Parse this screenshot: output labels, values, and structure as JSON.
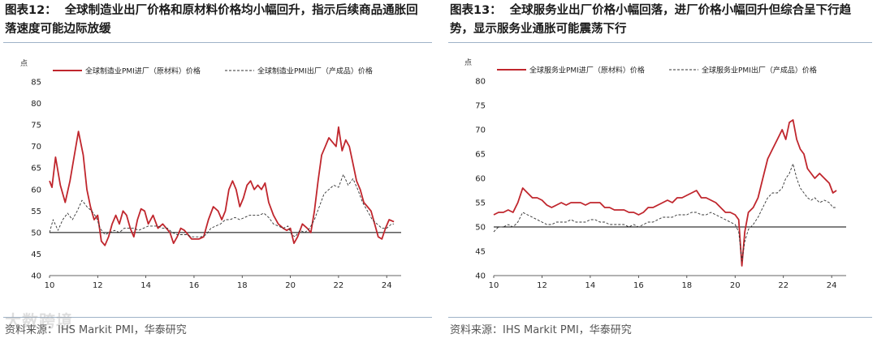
{
  "figures": [
    {
      "fig_label": "图表12：",
      "title": "全球制造业出厂价格和原材料价格均小幅回升，指示后续商品通胀回落速度可能边际放缓",
      "source": "资料来源：IHS Markit PMI，华泰研究"
    },
    {
      "fig_label": "图表13：",
      "title": "全球服务业出厂价格小幅回落，进厂价格小幅回升但综合呈下行趋势，显示服务业通胀可能震荡下行",
      "source": "资料来源：IHS Markit PMI，华泰研究"
    }
  ],
  "watermark": "大数跨境",
  "colors": {
    "input_series": "#c0262d",
    "output_series": "#333333",
    "rule": "#9fb3c8"
  },
  "chart_data": [
    {
      "type": "line",
      "ylabel": "点",
      "ylim": [
        40,
        85
      ],
      "yticks": [
        40,
        45,
        50,
        55,
        60,
        65,
        70,
        75,
        80,
        85
      ],
      "xlim": [
        2010,
        2024.6
      ],
      "xticks": [
        2010,
        2012,
        2014,
        2016,
        2018,
        2020,
        2022,
        2024
      ],
      "xtick_labels": [
        "10",
        "12",
        "14",
        "16",
        "18",
        "20",
        "22",
        "24"
      ],
      "reference_line": 50,
      "legend_position": "top",
      "series": [
        {
          "name": "全球制造业PMI进厂（原材料）价格",
          "style": "solid",
          "x": [
            2010.0,
            2010.1,
            2010.25,
            2010.45,
            2010.65,
            2010.85,
            2011.0,
            2011.2,
            2011.4,
            2011.55,
            2011.7,
            2011.85,
            2012.0,
            2012.15,
            2012.3,
            2012.45,
            2012.6,
            2012.75,
            2012.9,
            2013.05,
            2013.2,
            2013.35,
            2013.5,
            2013.65,
            2013.8,
            2013.95,
            2014.1,
            2014.3,
            2014.5,
            2014.7,
            2014.85,
            2015.0,
            2015.15,
            2015.3,
            2015.45,
            2015.6,
            2015.75,
            2015.9,
            2016.05,
            2016.2,
            2016.4,
            2016.6,
            2016.8,
            2017.0,
            2017.15,
            2017.3,
            2017.45,
            2017.6,
            2017.75,
            2017.9,
            2018.05,
            2018.2,
            2018.35,
            2018.5,
            2018.65,
            2018.8,
            2018.95,
            2019.1,
            2019.3,
            2019.5,
            2019.7,
            2019.85,
            2020.0,
            2020.15,
            2020.3,
            2020.5,
            2020.7,
            2020.85,
            2021.0,
            2021.15,
            2021.3,
            2021.45,
            2021.6,
            2021.75,
            2021.9,
            2022.0,
            2022.15,
            2022.3,
            2022.45,
            2022.6,
            2022.75,
            2022.9,
            2023.05,
            2023.2,
            2023.35,
            2023.5,
            2023.65,
            2023.8,
            2023.95,
            2024.1,
            2024.3
          ],
          "y": [
            62,
            60.5,
            67.5,
            61,
            57,
            62,
            67,
            73.5,
            68,
            60,
            56,
            53,
            54,
            48,
            47,
            49,
            52,
            54,
            52,
            55,
            54,
            51,
            49,
            53,
            55.5,
            55,
            52,
            54,
            51,
            52,
            51,
            50,
            47.5,
            49,
            51,
            50.5,
            49.5,
            48.5,
            48.5,
            48.5,
            49,
            53,
            56,
            55,
            53,
            55,
            60,
            62,
            60,
            56,
            58,
            61,
            62,
            60,
            61,
            60,
            61.5,
            57,
            54,
            52,
            51,
            50.5,
            51,
            47.5,
            49,
            52,
            51,
            50,
            55,
            62,
            68,
            70,
            72,
            71,
            70,
            74.5,
            69,
            71.5,
            70,
            66,
            62,
            60,
            57,
            56,
            55,
            52,
            49,
            48.5,
            51,
            53,
            52.5
          ]
        },
        {
          "name": "全球制造业PMI出厂（产成品）价格",
          "style": "dashed",
          "x": [
            2010.0,
            2010.15,
            2010.35,
            2010.55,
            2010.75,
            2010.95,
            2011.15,
            2011.35,
            2011.55,
            2011.75,
            2011.95,
            2012.1,
            2012.3,
            2012.5,
            2012.7,
            2012.9,
            2013.1,
            2013.3,
            2013.5,
            2013.7,
            2013.9,
            2014.1,
            2014.3,
            2014.5,
            2014.7,
            2014.9,
            2015.1,
            2015.3,
            2015.5,
            2015.7,
            2015.9,
            2016.1,
            2016.3,
            2016.5,
            2016.7,
            2016.9,
            2017.1,
            2017.3,
            2017.5,
            2017.7,
            2017.9,
            2018.1,
            2018.3,
            2018.5,
            2018.7,
            2018.9,
            2019.1,
            2019.3,
            2019.5,
            2019.7,
            2019.9,
            2020.05,
            2020.2,
            2020.4,
            2020.6,
            2020.8,
            2021.0,
            2021.2,
            2021.4,
            2021.6,
            2021.8,
            2022.0,
            2022.2,
            2022.4,
            2022.6,
            2022.8,
            2023.0,
            2023.2,
            2023.4,
            2023.6,
            2023.8,
            2024.0,
            2024.2,
            2024.3
          ],
          "y": [
            50,
            53,
            50.5,
            53,
            54.5,
            53,
            55,
            57.5,
            56,
            55,
            53.5,
            51,
            49.5,
            50,
            50.5,
            50,
            51,
            51,
            51,
            50.5,
            51,
            51.5,
            51.5,
            51.5,
            51,
            51,
            50,
            49.5,
            49.5,
            49.5,
            49,
            49,
            49,
            49.5,
            51,
            51.5,
            52,
            53,
            53,
            53.5,
            53,
            53.5,
            54,
            54,
            54,
            54.5,
            53.5,
            52,
            51.5,
            51,
            51.5,
            49.5,
            49,
            50.5,
            50,
            51,
            53,
            56,
            59,
            60,
            61,
            60.5,
            63.5,
            61,
            62.5,
            60,
            57,
            55,
            53,
            52,
            51,
            51,
            52,
            52
          ]
        }
      ]
    },
    {
      "type": "line",
      "ylabel": "点",
      "ylim": [
        40,
        80
      ],
      "yticks": [
        40,
        45,
        50,
        55,
        60,
        65,
        70,
        75,
        80
      ],
      "xlim": [
        2010,
        2024.6
      ],
      "xticks": [
        2010,
        2012,
        2014,
        2016,
        2018,
        2020,
        2022,
        2024
      ],
      "xtick_labels": [
        "10",
        "12",
        "14",
        "16",
        "18",
        "20",
        "22",
        "24"
      ],
      "reference_line": 50,
      "legend_position": "top",
      "series": [
        {
          "name": "全球服务业PMI进厂（原材料）价格",
          "style": "solid",
          "x": [
            2010.0,
            2010.2,
            2010.4,
            2010.6,
            2010.8,
            2011.0,
            2011.2,
            2011.4,
            2011.6,
            2011.8,
            2012.0,
            2012.2,
            2012.4,
            2012.6,
            2012.8,
            2013.0,
            2013.2,
            2013.4,
            2013.6,
            2013.8,
            2014.0,
            2014.2,
            2014.4,
            2014.6,
            2014.8,
            2015.0,
            2015.2,
            2015.4,
            2015.6,
            2015.8,
            2016.0,
            2016.2,
            2016.4,
            2016.6,
            2016.8,
            2017.0,
            2017.2,
            2017.4,
            2017.6,
            2017.8,
            2018.0,
            2018.2,
            2018.4,
            2018.6,
            2018.8,
            2019.0,
            2019.2,
            2019.4,
            2019.6,
            2019.8,
            2020.0,
            2020.15,
            2020.28,
            2020.4,
            2020.55,
            2020.75,
            2020.95,
            2021.15,
            2021.35,
            2021.55,
            2021.75,
            2021.95,
            2022.1,
            2022.25,
            2022.4,
            2022.55,
            2022.7,
            2022.85,
            2023.0,
            2023.15,
            2023.3,
            2023.5,
            2023.7,
            2023.9,
            2024.05,
            2024.2
          ],
          "y": [
            52.5,
            53,
            53,
            53.5,
            53,
            55,
            58,
            57,
            56,
            56,
            55.5,
            54.5,
            54,
            54.5,
            55,
            54.5,
            55,
            55,
            55,
            54.5,
            55,
            55,
            55,
            54,
            54,
            53.5,
            53.5,
            53.5,
            53,
            53,
            52.5,
            53,
            54,
            54,
            54.5,
            55,
            55.5,
            55,
            56,
            56,
            56.5,
            57,
            57.5,
            56,
            56,
            55.5,
            55,
            54,
            53,
            53,
            52.5,
            51.5,
            42,
            49,
            53,
            54,
            56,
            60,
            64,
            66,
            68,
            70,
            68,
            71.5,
            72,
            68,
            66,
            65,
            62,
            61,
            60,
            61,
            60,
            59,
            57,
            57.5
          ]
        },
        {
          "name": "全球服务业PMI出厂（产成品）价格",
          "style": "dashed",
          "x": [
            2010.0,
            2010.2,
            2010.4,
            2010.6,
            2010.8,
            2011.0,
            2011.2,
            2011.4,
            2011.6,
            2011.8,
            2012.0,
            2012.2,
            2012.4,
            2012.6,
            2012.8,
            2013.0,
            2013.2,
            2013.4,
            2013.6,
            2013.8,
            2014.0,
            2014.2,
            2014.4,
            2014.6,
            2014.8,
            2015.0,
            2015.2,
            2015.4,
            2015.6,
            2015.8,
            2016.0,
            2016.2,
            2016.4,
            2016.6,
            2016.8,
            2017.0,
            2017.2,
            2017.4,
            2017.6,
            2017.8,
            2018.0,
            2018.2,
            2018.4,
            2018.6,
            2018.8,
            2019.0,
            2019.2,
            2019.4,
            2019.6,
            2019.8,
            2020.0,
            2020.15,
            2020.28,
            2020.4,
            2020.55,
            2020.75,
            2020.95,
            2021.15,
            2021.35,
            2021.55,
            2021.75,
            2021.95,
            2022.1,
            2022.25,
            2022.4,
            2022.55,
            2022.7,
            2022.85,
            2023.0,
            2023.15,
            2023.3,
            2023.5,
            2023.7,
            2023.9,
            2024.05,
            2024.2
          ],
          "y": [
            49,
            50,
            50,
            50.5,
            50,
            51,
            53,
            52.5,
            52,
            51.5,
            51,
            50.5,
            50.5,
            51,
            51,
            51,
            51.5,
            51,
            51,
            51,
            51.5,
            51.5,
            51,
            51,
            50.5,
            50.5,
            50.5,
            50.5,
            50,
            50.5,
            50,
            50.5,
            51,
            51,
            51.5,
            52,
            52,
            52,
            52.5,
            52.5,
            52.5,
            53,
            53,
            52.5,
            52.5,
            53,
            52.5,
            52,
            51.5,
            51,
            50.5,
            49,
            43,
            47,
            49.5,
            50.5,
            52,
            54,
            56,
            57,
            57,
            58,
            60,
            61,
            63,
            60,
            58,
            57,
            56,
            55.5,
            56,
            55,
            55.5,
            55,
            54,
            54
          ]
        }
      ]
    }
  ]
}
